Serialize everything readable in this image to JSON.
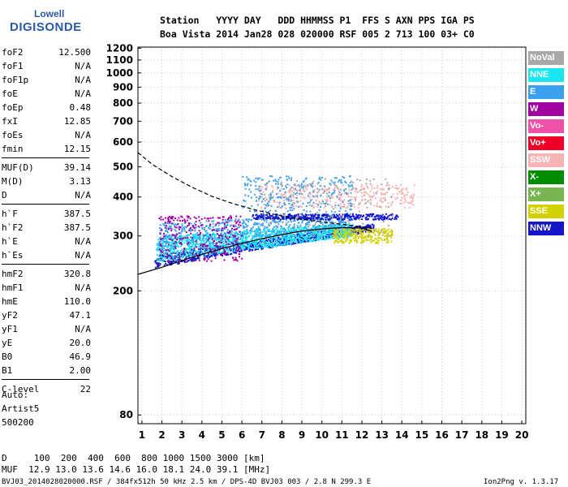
{
  "logo": {
    "line1": "Lowell",
    "line2": "DIGISONDE"
  },
  "header": {
    "line1": "Station   YYYY DAY   DDD HHMMSS P1  FFS S AXN PPS IGA PS",
    "line2": "Boa Vista 2014 Jan28 028 020000 RSF 005 2 713 100 03+ C0"
  },
  "params": [
    {
      "group": [
        {
          "k": "foF2",
          "v": "12.500"
        },
        {
          "k": "foF1",
          "v": "N/A"
        },
        {
          "k": "foF1p",
          "v": "N/A"
        },
        {
          "k": "foE",
          "v": "N/A"
        },
        {
          "k": "foEp",
          "v": "0.48"
        },
        {
          "k": "fxI",
          "v": "12.85"
        },
        {
          "k": "foEs",
          "v": "N/A"
        },
        {
          "k": "fmin",
          "v": "12.15"
        }
      ]
    },
    {
      "group": [
        {
          "k": "MUF(D)",
          "v": "39.14"
        },
        {
          "k": "M(D)",
          "v": "3.13"
        },
        {
          "k": "D",
          "v": "N/A"
        }
      ]
    },
    {
      "group": [
        {
          "k": "h`F",
          "v": "387.5"
        },
        {
          "k": "h`F2",
          "v": "387.5"
        },
        {
          "k": "h`E",
          "v": "N/A"
        },
        {
          "k": "h`Es",
          "v": "N/A"
        }
      ]
    },
    {
      "group": [
        {
          "k": "hmF2",
          "v": "320.8"
        },
        {
          "k": "hmF1",
          "v": "N/A"
        },
        {
          "k": "hmE",
          "v": "110.0"
        },
        {
          "k": "yF2",
          "v": "47.1"
        },
        {
          "k": "yF1",
          "v": "N/A"
        },
        {
          "k": "yE",
          "v": "20.0"
        },
        {
          "k": "B0",
          "v": "46.9"
        },
        {
          "k": "B1",
          "v": "2.00"
        }
      ]
    },
    {
      "group": [
        {
          "k": "C-level",
          "v": "22"
        }
      ]
    }
  ],
  "auto": {
    "l1": "Auto:",
    "l2": "Artist5",
    "l3": "500200"
  },
  "legend": [
    {
      "label": "NoVal",
      "color": "#a8a8a8"
    },
    {
      "label": "NNE",
      "color": "#19e6f0"
    },
    {
      "label": "E",
      "color": "#3ca0f0"
    },
    {
      "label": "W",
      "color": "#a000a0"
    },
    {
      "label": "Vo-",
      "color": "#f050a8"
    },
    {
      "label": "Vo+",
      "color": "#f00028"
    },
    {
      "label": "SSW",
      "color": "#f8b4b4"
    },
    {
      "label": "X-",
      "color": "#008c00"
    },
    {
      "label": "X+",
      "color": "#78b450"
    },
    {
      "label": "SSE",
      "color": "#d2d200"
    },
    {
      "label": "NNW",
      "color": "#1414c8"
    }
  ],
  "footer": {
    "d_line": "D     100  200  400  600  800 1000 1500 3000 [km]",
    "muf_line": "MUF  12.9 13.0 13.6 14.6 16.0 18.1 24.0 39.1 [MHz]",
    "file_note": "BVJ03_2014028020000.RSF / 384fx512h 50 kHz 2.5 km / DPS-4D BVJ03 003 / 2.8 N 299.3 E",
    "version": "Ion2Png v. 1.3.17"
  },
  "chart_data": {
    "type": "scatter",
    "title": "",
    "xlabel": "",
    "ylabel": "",
    "xlim": [
      0.8,
      20.2
    ],
    "ylim": [
      75,
      1210
    ],
    "y_scale": "log",
    "x_ticks": [
      "1",
      "2",
      "3",
      "4",
      "5",
      "6",
      "7",
      "8",
      "9",
      "10",
      "11",
      "12",
      "13",
      "14",
      "15",
      "16",
      "17",
      "18",
      "19",
      "20"
    ],
    "y_ticks": [
      "80",
      "200",
      "300",
      "400",
      "500",
      "600",
      "700",
      "800",
      "900",
      "1000",
      "1100",
      "1200"
    ],
    "grid": true,
    "legend_position": "right",
    "clusters": [
      {
        "name": "NNW",
        "x": [
          1.6,
          12.6
        ],
        "y_low": [
          238,
          312
        ],
        "y_high": [
          262,
          330
        ],
        "density": 900
      },
      {
        "name": "NNE",
        "x": [
          1.7,
          11.5
        ],
        "y_low": [
          248,
          300
        ],
        "y_high": [
          300,
          330
        ],
        "density": 1300
      },
      {
        "name": "E",
        "x": [
          1.8,
          11.5
        ],
        "y_low": [
          270,
          320
        ],
        "y_high": [
          330,
          360
        ],
        "density": 650
      },
      {
        "name": "W",
        "x": [
          1.8,
          6.0
        ],
        "y_low": [
          250,
          250
        ],
        "y_high": [
          350,
          350
        ],
        "density": 300
      },
      {
        "name": "NNW",
        "x": [
          6.5,
          13.8
        ],
        "y_low": [
          340,
          340
        ],
        "y_high": [
          355,
          355
        ],
        "density": 350
      },
      {
        "name": "SSW",
        "x": [
          6.8,
          14.6
        ],
        "y_low": [
          370,
          370
        ],
        "y_high": [
          440,
          440
        ],
        "density": 350
      },
      {
        "name": "SSE",
        "x": [
          10.5,
          13.5
        ],
        "y_low": [
          286,
          286
        ],
        "y_high": [
          318,
          318
        ],
        "density": 250
      },
      {
        "name": "E",
        "x": [
          6.0,
          11.5
        ],
        "y_low": [
          360,
          360
        ],
        "y_high": [
          470,
          470
        ],
        "density": 250
      },
      {
        "name": "NoVal",
        "x": [
          7.0,
          13.5
        ],
        "y_low": [
          300,
          300
        ],
        "y_high": [
          460,
          460
        ],
        "density": 150
      }
    ],
    "curves": [
      {
        "name": "trace-solid",
        "style": "solid",
        "x": [
          0.8,
          2.0,
          3.0,
          4.0,
          5.0,
          6.0,
          7.0,
          8.0,
          9.0,
          10.0,
          11.0,
          12.0,
          12.5
        ],
        "y": [
          226,
          238,
          250,
          262,
          273,
          284,
          294,
          303,
          311,
          316,
          319,
          318,
          310
        ]
      },
      {
        "name": "trace-dashed",
        "style": "dashed",
        "x": [
          0.8,
          1.5,
          2.5,
          3.5,
          4.5,
          5.5,
          6.5,
          7.5,
          8.5,
          9.5,
          10.5,
          11.5,
          12.5
        ],
        "y": [
          555,
          510,
          465,
          430,
          402,
          382,
          366,
          353,
          343,
          336,
          330,
          324,
          318
        ]
      }
    ]
  }
}
